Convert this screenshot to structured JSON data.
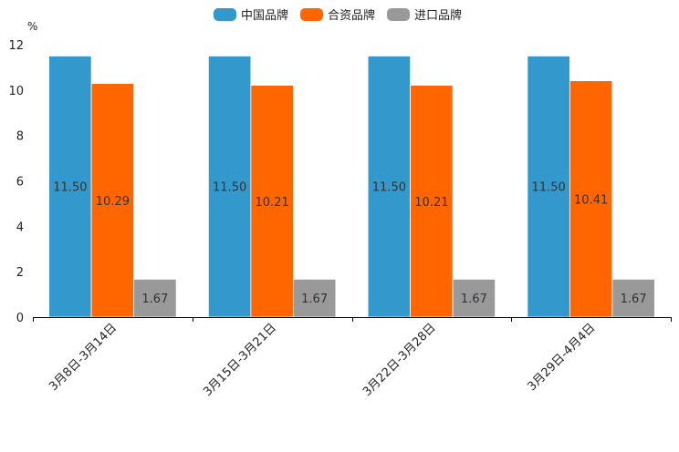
{
  "chart_data": {
    "type": "bar",
    "unit": "%",
    "ylim": [
      0,
      12
    ],
    "yticks": [
      0,
      2,
      4,
      6,
      8,
      10,
      12
    ],
    "categories": [
      "3月8日-3月14日",
      "3月15日-3月21日",
      "3月22日-3月28日",
      "3月29日-4月4日"
    ],
    "series": [
      {
        "name": "中国品牌",
        "color": "#3399cc",
        "values": [
          11.5,
          11.5,
          11.5,
          11.5
        ],
        "labels": [
          "11.50",
          "11.50",
          "11.50",
          "11.50"
        ]
      },
      {
        "name": "合资品牌",
        "color": "#ff6600",
        "values": [
          10.29,
          10.21,
          10.21,
          10.41
        ],
        "labels": [
          "10.29",
          "10.21",
          "10.21",
          "10.41"
        ]
      },
      {
        "name": "进口品牌",
        "color": "#999999",
        "values": [
          1.67,
          1.67,
          1.67,
          1.67
        ],
        "labels": [
          "1.67",
          "1.67",
          "1.67",
          "1.67"
        ]
      }
    ]
  }
}
